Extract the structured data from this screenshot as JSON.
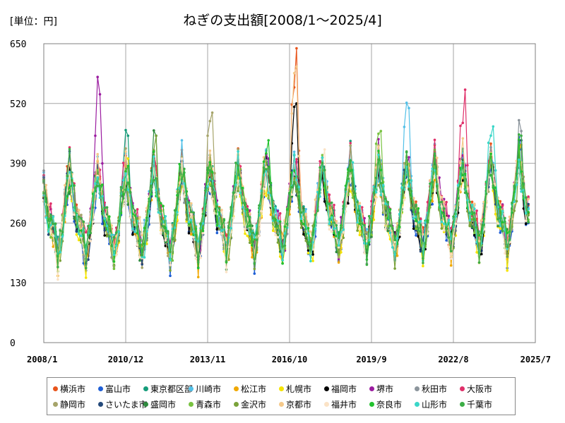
{
  "unit_label": "[単位：円]",
  "chart_data": {
    "type": "line",
    "title": "ねぎの支出額[2008/1～2025/4]",
    "xlabel": "",
    "ylabel": "",
    "ylim": [
      0,
      650
    ],
    "yticks": [
      0,
      130,
      260,
      390,
      520,
      650
    ],
    "x_range": [
      "2008/1",
      "2025/7"
    ],
    "xticks": [
      "2008/1",
      "2010/12",
      "2013/11",
      "2016/10",
      "2019/9",
      "2022/8",
      "2025/7"
    ],
    "x_start": "2008-01",
    "x_end": "2025-04",
    "grid": true,
    "legend_position": "bottom",
    "series": [
      {
        "name": "横浜市",
        "color": "#e8541b",
        "peak": 640,
        "peak_year": 2017,
        "base": 265
      },
      {
        "name": "富山市",
        "color": "#1f5fd6",
        "peak": 420,
        "peak_year": 2025,
        "base": 245
      },
      {
        "name": "東京都区部",
        "color": "#159c7a",
        "peak": 450,
        "peak_year": 2011,
        "base": 265
      },
      {
        "name": "川崎市",
        "color": "#52c0e8",
        "peak": 510,
        "peak_year": 2021,
        "base": 270
      },
      {
        "name": "松江市",
        "color": "#f0a800",
        "peak": 430,
        "peak_year": 2025,
        "base": 250
      },
      {
        "name": "札幌市",
        "color": "#f5e400",
        "peak": 400,
        "peak_year": 2011,
        "base": 245
      },
      {
        "name": "福岡市",
        "color": "#000000",
        "peak": 520,
        "peak_year": 2017,
        "base": 250
      },
      {
        "name": "堺市",
        "color": "#9b1ca0",
        "peak": 540,
        "peak_year": 2010,
        "base": 270
      },
      {
        "name": "秋田市",
        "color": "#8c959c",
        "peak": 460,
        "peak_year": 2025,
        "base": 260
      },
      {
        "name": "大阪市",
        "color": "#e0306a",
        "peak": 550,
        "peak_year": 2023,
        "base": 275
      },
      {
        "name": "静岡市",
        "color": "#a6a46a",
        "peak": 500,
        "peak_year": 2014,
        "base": 265
      },
      {
        "name": "さいたま市",
        "color": "#24497a",
        "peak": 440,
        "peak_year": 2025,
        "base": 255
      },
      {
        "name": "盛岡市",
        "color": "#2e8b3e",
        "peak": 450,
        "peak_year": 2012,
        "base": 255
      },
      {
        "name": "青森市",
        "color": "#78c240",
        "peak": 460,
        "peak_year": 2020,
        "base": 255
      },
      {
        "name": "金沢市",
        "color": "#7aa23a",
        "peak": 450,
        "peak_year": 2012,
        "base": 250
      },
      {
        "name": "京都市",
        "color": "#f5c98a",
        "peak": 600,
        "peak_year": 2017,
        "base": 275
      },
      {
        "name": "福井市",
        "color": "#fbe3c6",
        "peak": 420,
        "peak_year": 2018,
        "base": 250
      },
      {
        "name": "奈良市",
        "color": "#22c22e",
        "peak": 440,
        "peak_year": 2016,
        "base": 265
      },
      {
        "name": "山形市",
        "color": "#3ad6c8",
        "peak": 470,
        "peak_year": 2024,
        "base": 260
      },
      {
        "name": "千葉市",
        "color": "#3cae46",
        "peak": 450,
        "peak_year": 2025,
        "base": 265
      }
    ]
  }
}
